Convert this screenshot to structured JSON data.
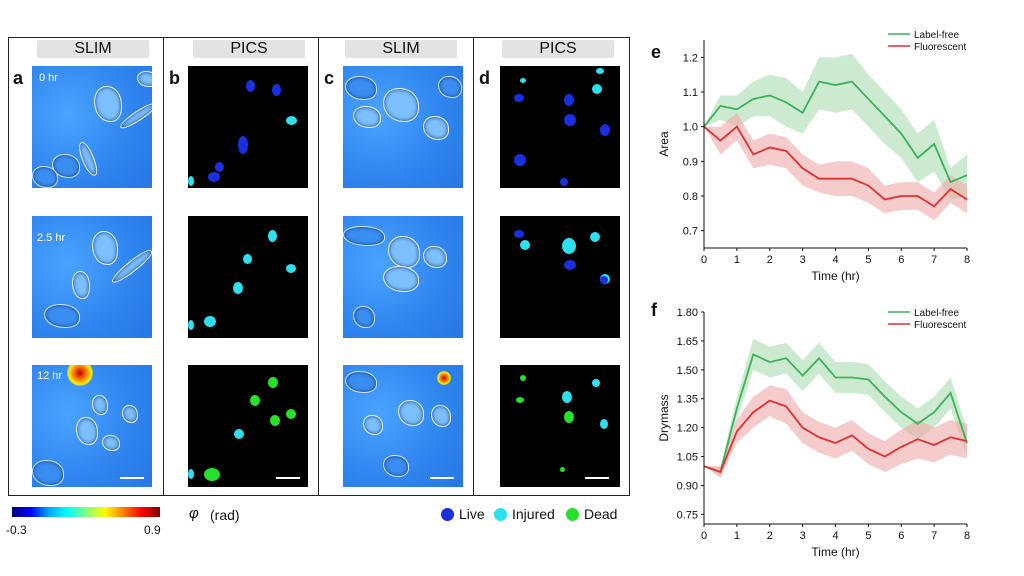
{
  "headers": [
    "SLIM",
    "PICS",
    "SLIM",
    "PICS"
  ],
  "panel_letters": {
    "a": "a",
    "b": "b",
    "c": "c",
    "d": "d",
    "e": "e",
    "f": "f"
  },
  "time_labels": [
    "0 hr",
    "2.5 hr",
    "12 hr"
  ],
  "colorbar": {
    "min": "-0.3",
    "max": "0.9",
    "symbol": "φ",
    "unit": "(rad)"
  },
  "status_legend": [
    {
      "label": "Live",
      "color": "#1a2fe0"
    },
    {
      "label": "Injured",
      "color": "#2de0f0"
    },
    {
      "label": "Dead",
      "color": "#26e02a"
    }
  ],
  "chart_data": [
    {
      "type": "line",
      "panel": "e",
      "xlabel": "Time (hr)",
      "ylabel": "Area",
      "xlim": [
        0,
        8
      ],
      "ylim": [
        0.65,
        1.25
      ],
      "xticks": [
        0,
        1,
        2,
        3,
        4,
        5,
        6,
        7,
        8
      ],
      "yticks": [
        0.7,
        0.8,
        0.9,
        1.0,
        1.1,
        1.2
      ],
      "legend_position": "top-right",
      "x": [
        0,
        0.5,
        1,
        1.5,
        2,
        2.5,
        3,
        3.5,
        4,
        4.5,
        5,
        5.5,
        6,
        6.5,
        7,
        7.5,
        8
      ],
      "series": [
        {
          "name": "Label-free",
          "color": "#3cb35a",
          "band": "#a8dcb0",
          "values": [
            1.0,
            1.06,
            1.05,
            1.08,
            1.09,
            1.07,
            1.04,
            1.13,
            1.12,
            1.13,
            1.08,
            1.03,
            0.98,
            0.91,
            0.95,
            0.84,
            0.86
          ],
          "lower": [
            1.0,
            1.02,
            1.0,
            1.03,
            1.03,
            1.0,
            0.98,
            1.05,
            1.04,
            1.05,
            1.0,
            0.95,
            0.91,
            0.84,
            0.87,
            0.79,
            0.8
          ],
          "upper": [
            1.0,
            1.09,
            1.09,
            1.13,
            1.15,
            1.14,
            1.1,
            1.2,
            1.2,
            1.21,
            1.15,
            1.1,
            1.05,
            0.98,
            1.02,
            0.88,
            0.92
          ]
        },
        {
          "name": "Fluorescent",
          "color": "#e03030",
          "band": "#f0a8a8",
          "values": [
            1.0,
            0.96,
            1.0,
            0.92,
            0.94,
            0.93,
            0.88,
            0.85,
            0.85,
            0.85,
            0.83,
            0.79,
            0.8,
            0.8,
            0.77,
            0.82,
            0.79
          ],
          "lower": [
            1.0,
            0.92,
            0.96,
            0.88,
            0.89,
            0.88,
            0.83,
            0.81,
            0.8,
            0.8,
            0.78,
            0.75,
            0.76,
            0.76,
            0.73,
            0.78,
            0.75
          ],
          "upper": [
            1.0,
            1.0,
            1.04,
            0.96,
            0.98,
            0.97,
            0.92,
            0.89,
            0.9,
            0.9,
            0.88,
            0.83,
            0.84,
            0.84,
            0.81,
            0.86,
            0.83
          ]
        }
      ]
    },
    {
      "type": "line",
      "panel": "f",
      "xlabel": "Time (hr)",
      "ylabel": "Drymass",
      "xlim": [
        0,
        8
      ],
      "ylim": [
        0.7,
        1.8
      ],
      "xticks": [
        0,
        1,
        2,
        3,
        4,
        5,
        6,
        7,
        8
      ],
      "yticks": [
        0.75,
        0.9,
        1.05,
        1.2,
        1.35,
        1.5,
        1.65,
        1.8
      ],
      "yticklabels": [
        "0.75",
        "0.90",
        "1.05",
        "1.20",
        "1.35",
        "1.50",
        "1.65",
        "1.80"
      ],
      "legend_position": "top-right",
      "x": [
        0,
        0.5,
        1,
        1.5,
        2,
        2.5,
        3,
        3.5,
        4,
        4.5,
        5,
        5.5,
        6,
        6.5,
        7,
        7.5,
        8
      ],
      "series": [
        {
          "name": "Label-free",
          "color": "#3cb35a",
          "band": "#a8dcb0",
          "values": [
            1.0,
            0.97,
            1.3,
            1.58,
            1.54,
            1.56,
            1.47,
            1.56,
            1.46,
            1.46,
            1.45,
            1.36,
            1.28,
            1.22,
            1.28,
            1.38,
            1.12
          ],
          "lower": [
            1.0,
            0.95,
            1.24,
            1.5,
            1.46,
            1.48,
            1.39,
            1.48,
            1.38,
            1.38,
            1.37,
            1.28,
            1.2,
            1.14,
            1.2,
            1.3,
            1.05
          ],
          "upper": [
            1.0,
            0.99,
            1.36,
            1.66,
            1.62,
            1.64,
            1.55,
            1.64,
            1.54,
            1.54,
            1.53,
            1.44,
            1.36,
            1.3,
            1.36,
            1.46,
            1.19
          ]
        },
        {
          "name": "Fluorescent",
          "color": "#e03030",
          "band": "#f0a8a8",
          "values": [
            1.0,
            0.97,
            1.18,
            1.28,
            1.34,
            1.31,
            1.2,
            1.15,
            1.12,
            1.16,
            1.09,
            1.05,
            1.1,
            1.14,
            1.11,
            1.15,
            1.13
          ],
          "lower": [
            1.0,
            0.94,
            1.12,
            1.2,
            1.26,
            1.22,
            1.12,
            1.07,
            1.04,
            1.08,
            1.01,
            0.97,
            1.01,
            1.04,
            1.02,
            1.06,
            1.04
          ],
          "upper": [
            1.0,
            1.0,
            1.24,
            1.36,
            1.42,
            1.4,
            1.28,
            1.23,
            1.2,
            1.24,
            1.17,
            1.13,
            1.19,
            1.24,
            1.2,
            1.24,
            1.22
          ]
        }
      ]
    }
  ]
}
